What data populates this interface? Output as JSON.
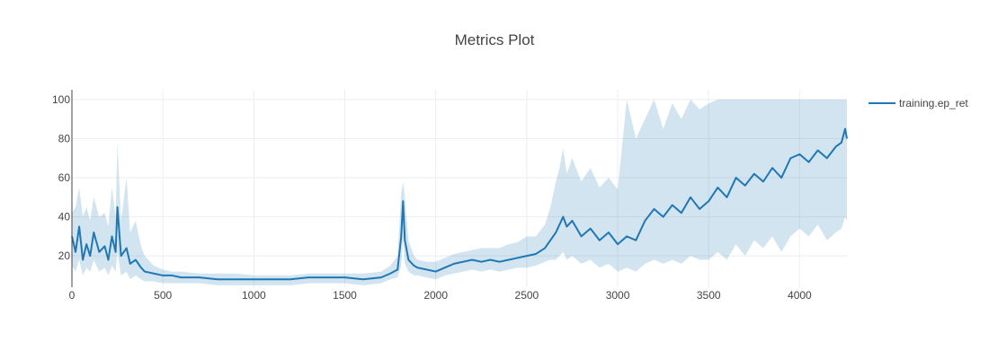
{
  "chart_data": {
    "type": "line",
    "title": "Metrics Plot",
    "xlabel": "",
    "ylabel": "",
    "xlim": [
      0,
      4260
    ],
    "ylim": [
      4,
      105
    ],
    "x_ticks": [
      0,
      500,
      1000,
      1500,
      2000,
      2500,
      3000,
      3500,
      4000
    ],
    "y_ticks": [
      20,
      40,
      60,
      80,
      100
    ],
    "grid": true,
    "legend_position": "top-right",
    "series": [
      {
        "name": "training.ep_ret",
        "color": "#1f77b4",
        "band_color": "#1f77b4",
        "x": [
          0,
          20,
          40,
          60,
          80,
          100,
          120,
          150,
          180,
          200,
          220,
          240,
          250,
          270,
          300,
          320,
          350,
          380,
          400,
          450,
          500,
          550,
          600,
          700,
          800,
          900,
          1000,
          1100,
          1200,
          1300,
          1400,
          1500,
          1600,
          1700,
          1750,
          1790,
          1810,
          1820,
          1830,
          1850,
          1880,
          1900,
          1950,
          2000,
          2050,
          2100,
          2150,
          2200,
          2250,
          2300,
          2350,
          2400,
          2450,
          2500,
          2550,
          2600,
          2630,
          2660,
          2680,
          2700,
          2720,
          2750,
          2800,
          2850,
          2900,
          2950,
          3000,
          3050,
          3100,
          3150,
          3200,
          3250,
          3300,
          3350,
          3400,
          3450,
          3500,
          3550,
          3600,
          3650,
          3700,
          3750,
          3800,
          3850,
          3900,
          3950,
          4000,
          4050,
          4100,
          4150,
          4200,
          4230,
          4250,
          4260
        ],
        "y": [
          30,
          22,
          35,
          18,
          26,
          20,
          32,
          22,
          25,
          18,
          30,
          22,
          45,
          20,
          24,
          16,
          18,
          14,
          12,
          11,
          10,
          10,
          9,
          9,
          8,
          8,
          8,
          8,
          8,
          9,
          9,
          9,
          8,
          9,
          11,
          13,
          30,
          48,
          28,
          18,
          15,
          14,
          13,
          12,
          14,
          16,
          17,
          18,
          17,
          18,
          17,
          18,
          19,
          20,
          21,
          24,
          28,
          32,
          36,
          40,
          35,
          38,
          30,
          34,
          28,
          32,
          26,
          30,
          28,
          38,
          44,
          40,
          46,
          42,
          50,
          44,
          48,
          55,
          50,
          60,
          56,
          62,
          58,
          65,
          60,
          70,
          72,
          68,
          74,
          70,
          76,
          78,
          85,
          80
        ],
        "upper": [
          42,
          45,
          55,
          40,
          45,
          38,
          50,
          40,
          42,
          35,
          55,
          40,
          78,
          38,
          60,
          32,
          38,
          25,
          20,
          15,
          13,
          12,
          12,
          11,
          11,
          11,
          10,
          10,
          10,
          11,
          11,
          11,
          11,
          12,
          15,
          20,
          52,
          58,
          50,
          28,
          20,
          18,
          17,
          17,
          19,
          21,
          22,
          23,
          24,
          24,
          24,
          26,
          27,
          30,
          30,
          36,
          45,
          58,
          65,
          75,
          62,
          70,
          58,
          65,
          55,
          60,
          54,
          100,
          80,
          90,
          100,
          85,
          98,
          90,
          100,
          95,
          98,
          100,
          100,
          100,
          100,
          100,
          100,
          100,
          100,
          100,
          100,
          100,
          100,
          100,
          100,
          100,
          100,
          100
        ],
        "lower": [
          15,
          12,
          18,
          10,
          14,
          12,
          18,
          12,
          14,
          10,
          15,
          12,
          22,
          10,
          12,
          8,
          10,
          8,
          7,
          7,
          6,
          6,
          6,
          6,
          5,
          5,
          5,
          5,
          5,
          6,
          6,
          6,
          5,
          6,
          8,
          9,
          15,
          28,
          16,
          12,
          10,
          10,
          9,
          8,
          10,
          11,
          12,
          13,
          12,
          13,
          12,
          13,
          14,
          14,
          15,
          17,
          18,
          18,
          20,
          22,
          18,
          20,
          16,
          18,
          14,
          16,
          12,
          14,
          12,
          16,
          18,
          16,
          18,
          16,
          20,
          18,
          18,
          22,
          18,
          26,
          20,
          28,
          24,
          30,
          22,
          30,
          34,
          30,
          36,
          28,
          32,
          34,
          40,
          38
        ]
      }
    ]
  }
}
